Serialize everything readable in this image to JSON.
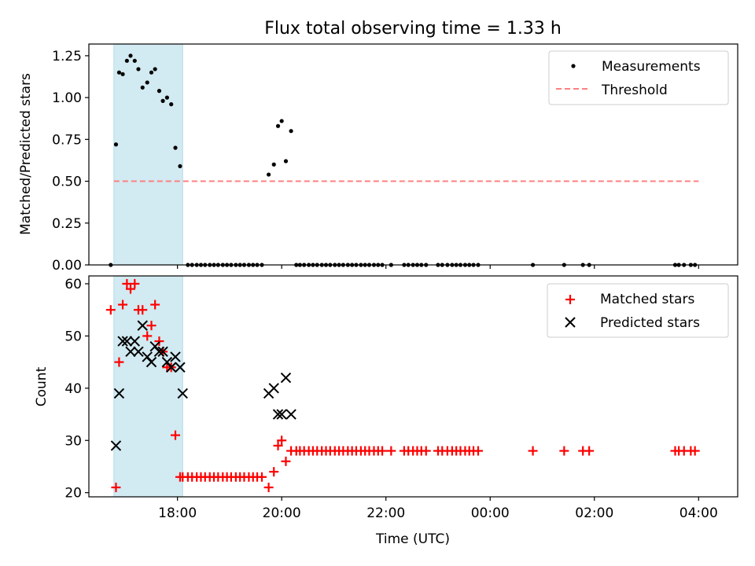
{
  "colors": {
    "shade": "#add8e6",
    "threshold": "#ff8080",
    "matched": "#ff0000",
    "predicted": "#000000",
    "measurements": "#000000"
  },
  "chart_data": [
    {
      "type": "scatter",
      "title": "Flux total observing time = 1.33 h",
      "xlabel": "",
      "ylabel": "Matched/Predicted stars",
      "x_unit": "hours since 00:00 UTC (values beyond 24 are next day)",
      "xlim": [
        16.3,
        28.75
      ],
      "ylim": [
        0,
        1.32
      ],
      "yticks": [
        0.0,
        0.25,
        0.5,
        0.75,
        1.0,
        1.25
      ],
      "ytick_labels": [
        "0.00",
        "0.25",
        "0.50",
        "0.75",
        "1.00",
        "1.25"
      ],
      "shaded_span": [
        16.78,
        18.1
      ],
      "threshold": {
        "value": 0.5,
        "x_start": 16.78,
        "x_end": 28.0
      },
      "legend": {
        "position": "top-right",
        "entries": [
          "Measurements",
          "Threshold"
        ]
      },
      "series": [
        {
          "name": "Measurements",
          "x": [
            16.72,
            16.82,
            16.88,
            16.95,
            17.03,
            17.1,
            17.18,
            17.25,
            17.33,
            17.42,
            17.5,
            17.57,
            17.65,
            17.72,
            17.8,
            17.88,
            17.96,
            18.05,
            18.2,
            18.28,
            18.37,
            18.45,
            18.53,
            18.62,
            18.7,
            18.78,
            18.87,
            18.95,
            19.03,
            19.12,
            19.2,
            19.28,
            19.37,
            19.45,
            19.53,
            19.62,
            19.75,
            19.85,
            19.93,
            20.0,
            20.08,
            20.18,
            20.28,
            20.35,
            20.43,
            20.52,
            20.6,
            20.68,
            20.77,
            20.85,
            20.93,
            21.02,
            21.1,
            21.18,
            21.27,
            21.35,
            21.43,
            21.52,
            21.6,
            21.68,
            21.77,
            21.85,
            21.93,
            22.1,
            22.35,
            22.43,
            22.52,
            22.6,
            22.68,
            22.77,
            23.0,
            23.08,
            23.18,
            23.27,
            23.35,
            23.43,
            23.52,
            23.6,
            23.68,
            23.77,
            24.82,
            25.42,
            25.78,
            25.9,
            27.55,
            27.62,
            27.72,
            27.85,
            27.93
          ],
          "y": [
            0.0,
            0.72,
            1.15,
            1.14,
            1.22,
            1.25,
            1.22,
            1.17,
            1.06,
            1.09,
            1.15,
            1.17,
            1.04,
            0.98,
            1.0,
            0.96,
            0.7,
            0.59,
            0,
            0,
            0,
            0,
            0,
            0,
            0,
            0,
            0,
            0,
            0,
            0,
            0,
            0,
            0,
            0,
            0,
            0,
            0.54,
            0.6,
            0.83,
            0.86,
            0.62,
            0.8,
            0,
            0,
            0,
            0,
            0,
            0,
            0,
            0,
            0,
            0,
            0,
            0,
            0,
            0,
            0,
            0,
            0,
            0,
            0,
            0,
            0,
            0,
            0,
            0,
            0,
            0,
            0,
            0,
            0,
            0,
            0,
            0,
            0,
            0,
            0,
            0,
            0,
            0,
            0,
            0,
            0,
            0,
            0,
            0,
            0,
            0,
            0
          ]
        }
      ]
    },
    {
      "type": "scatter",
      "title": "",
      "xlabel": "Time (UTC)",
      "ylabel": "Count",
      "x_unit": "hours since 00:00 UTC (values beyond 24 are next day)",
      "xlim": [
        16.3,
        28.75
      ],
      "ylim": [
        19.2,
        61.5
      ],
      "yticks": [
        20,
        30,
        40,
        50,
        60
      ],
      "ytick_labels": [
        "20",
        "30",
        "40",
        "50",
        "60"
      ],
      "xticks": [
        18,
        20,
        22,
        24,
        26,
        28
      ],
      "xtick_labels": [
        "18:00",
        "20:00",
        "22:00",
        "00:00",
        "02:00",
        "04:00"
      ],
      "shaded_span": [
        16.78,
        18.1
      ],
      "legend": {
        "position": "top-right",
        "entries": [
          "Matched stars",
          "Predicted stars"
        ]
      },
      "series": [
        {
          "name": "Matched stars",
          "marker": "plus",
          "x": [
            16.72,
            16.82,
            16.88,
            16.95,
            17.03,
            17.1,
            17.18,
            17.25,
            17.33,
            17.42,
            17.5,
            17.57,
            17.65,
            17.72,
            17.8,
            17.88,
            17.96,
            18.05,
            18.1,
            18.2,
            18.28,
            18.37,
            18.45,
            18.53,
            18.62,
            18.7,
            18.78,
            18.87,
            18.95,
            19.03,
            19.12,
            19.2,
            19.28,
            19.37,
            19.45,
            19.53,
            19.62,
            19.75,
            19.85,
            19.93,
            20.0,
            20.08,
            20.18,
            20.28,
            20.35,
            20.43,
            20.52,
            20.6,
            20.68,
            20.77,
            20.85,
            20.93,
            21.02,
            21.1,
            21.18,
            21.27,
            21.35,
            21.43,
            21.52,
            21.6,
            21.68,
            21.77,
            21.85,
            21.93,
            22.1,
            22.35,
            22.43,
            22.52,
            22.6,
            22.68,
            22.77,
            23.0,
            23.08,
            23.18,
            23.27,
            23.35,
            23.43,
            23.52,
            23.6,
            23.68,
            23.77,
            24.82,
            25.42,
            25.78,
            25.9,
            27.55,
            27.62,
            27.72,
            27.85,
            27.93
          ],
          "y": [
            55,
            21,
            45,
            56,
            60,
            59,
            60,
            55,
            55,
            50,
            52,
            56,
            49,
            47,
            44,
            44,
            31,
            23,
            23,
            23,
            23,
            23,
            23,
            23,
            23,
            23,
            23,
            23,
            23,
            23,
            23,
            23,
            23,
            23,
            23,
            23,
            23,
            21,
            24,
            29,
            30,
            26,
            28,
            28,
            28,
            28,
            28,
            28,
            28,
            28,
            28,
            28,
            28,
            28,
            28,
            28,
            28,
            28,
            28,
            28,
            28,
            28,
            28,
            28,
            28,
            28,
            28,
            28,
            28,
            28,
            28,
            28,
            28,
            28,
            28,
            28,
            28,
            28,
            28,
            28,
            28,
            28,
            28,
            28,
            28,
            28,
            28,
            28,
            28,
            28
          ]
        },
        {
          "name": "Predicted stars",
          "marker": "x",
          "x": [
            16.82,
            16.88,
            16.95,
            17.03,
            17.1,
            17.18,
            17.25,
            17.33,
            17.42,
            17.5,
            17.57,
            17.65,
            17.72,
            17.8,
            17.88,
            17.96,
            18.05,
            18.1,
            19.75,
            19.85,
            19.93,
            20.0,
            20.08,
            20.18
          ],
          "y": [
            29,
            39,
            49,
            49,
            47,
            49,
            47,
            52,
            46,
            45,
            48,
            47,
            47,
            45,
            44,
            46,
            44,
            39,
            39,
            40,
            35,
            35,
            42,
            35
          ]
        }
      ]
    }
  ]
}
